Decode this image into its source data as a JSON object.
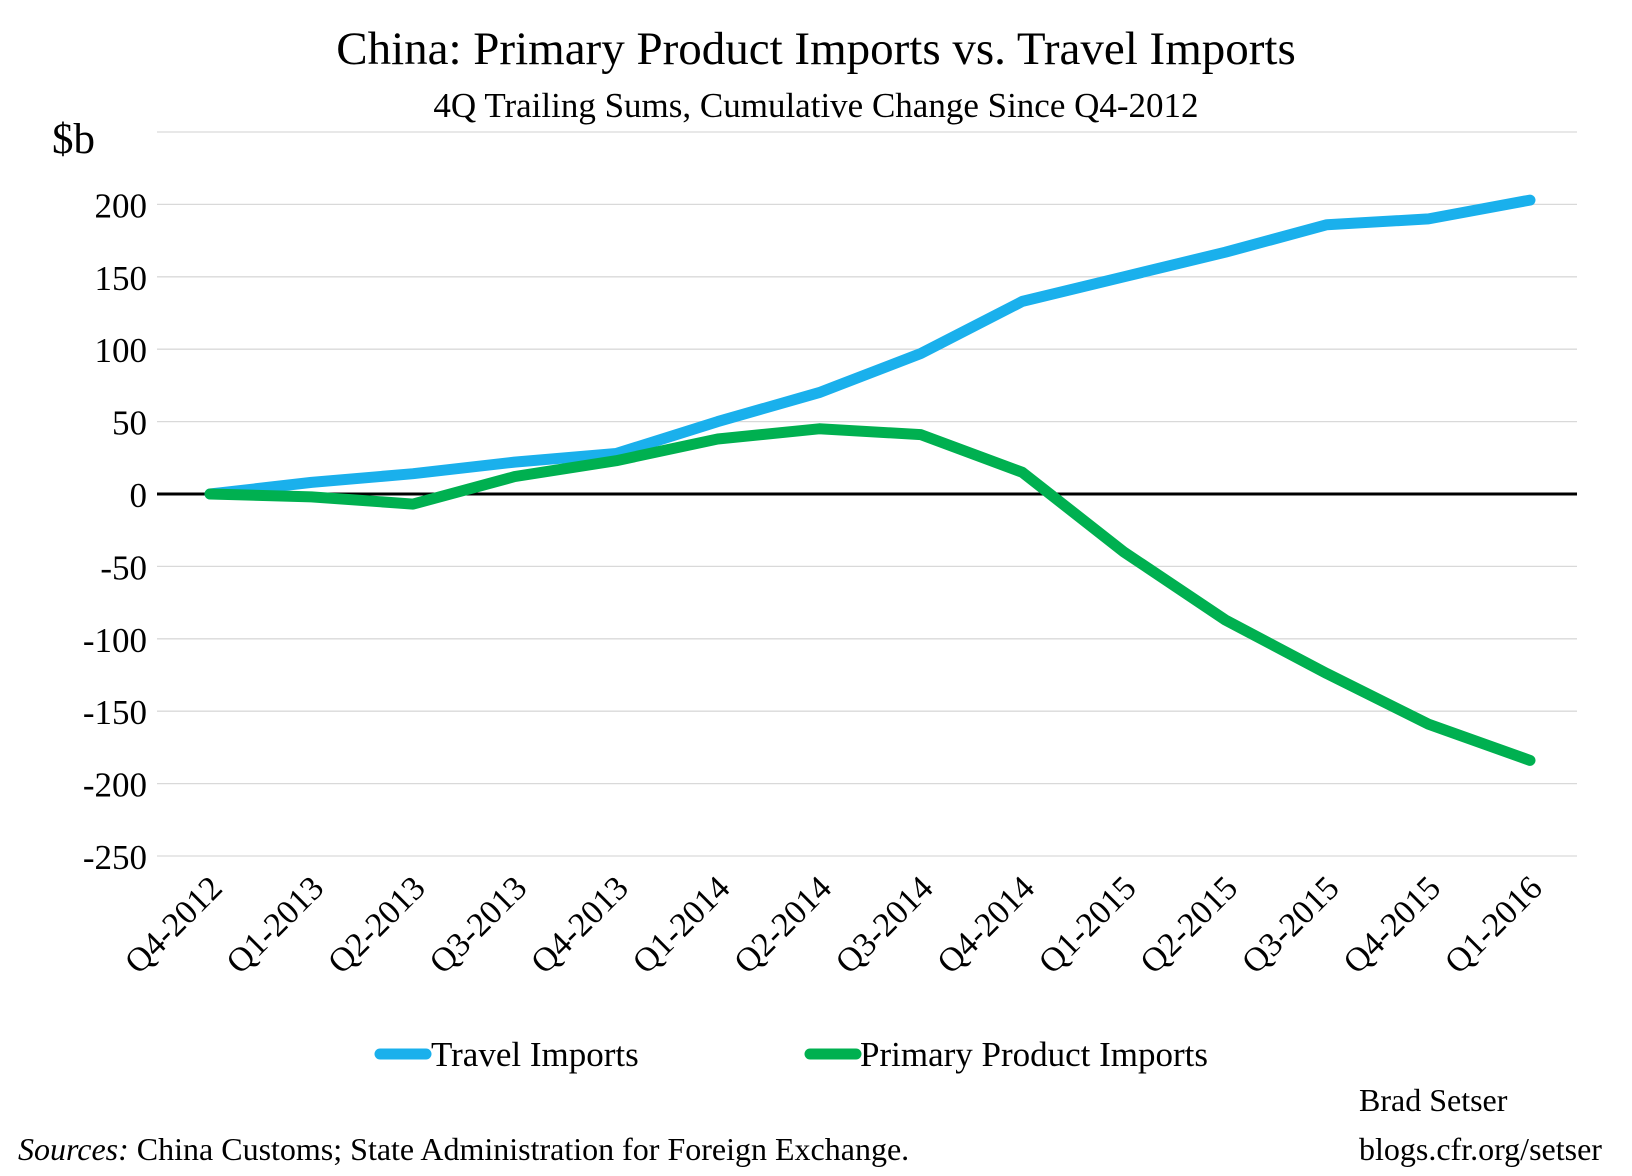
{
  "chart_data": {
    "type": "line",
    "title": "China: Primary Product Imports vs. Travel Imports",
    "subtitle": "4Q Trailing Sums, Cumulative Change Since Q4-2012",
    "ylabel": "$b",
    "xlabel": "",
    "ylim": [
      -250,
      250
    ],
    "yticks": [
      200,
      150,
      100,
      50,
      0,
      -50,
      -100,
      -150,
      -200,
      -250
    ],
    "grid": true,
    "legend_position": "bottom",
    "categories": [
      "Q4-2012",
      "Q1-2013",
      "Q2-2013",
      "Q3-2013",
      "Q4-2013",
      "Q1-2014",
      "Q2-2014",
      "Q3-2014",
      "Q4-2014",
      "Q1-2015",
      "Q2-2015",
      "Q3-2015",
      "Q4-2015",
      "Q1-2016"
    ],
    "series": [
      {
        "name": "Travel Imports",
        "color": "#1AB0EC",
        "values": [
          0,
          8,
          14,
          22,
          28,
          50,
          70,
          97,
          133,
          150,
          167,
          186,
          190,
          203
        ]
      },
      {
        "name": "Primary Product Imports",
        "color": "#00B050",
        "values": [
          0,
          -2,
          -7,
          12,
          23,
          38,
          45,
          41,
          15,
          -40,
          -87,
          -124,
          -159,
          -184
        ]
      }
    ]
  },
  "author": "Brad Setser",
  "blog": "blogs.cfr.org/setser",
  "source": {
    "prefix": "Sources:",
    "text": " China Customs; State Administration for Foreign Exchange."
  }
}
